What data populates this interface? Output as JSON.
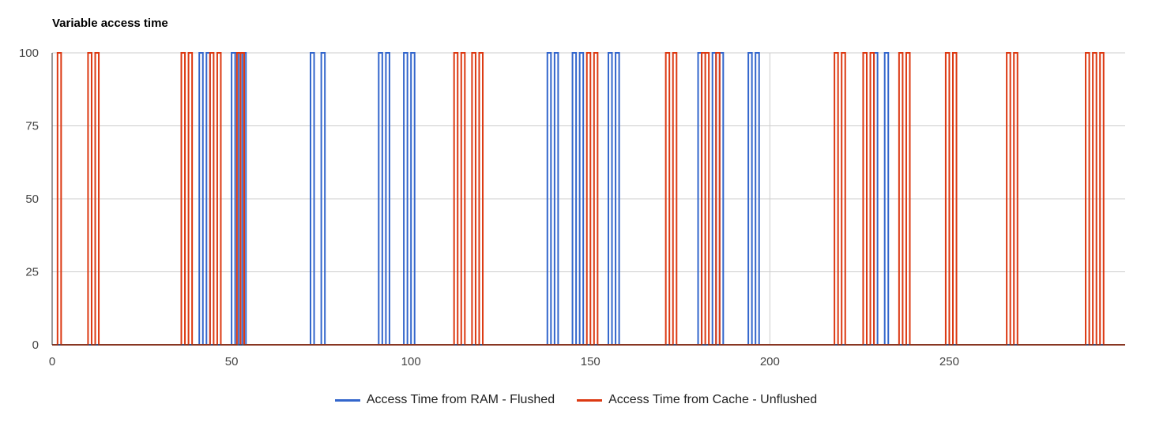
{
  "title": "Variable access time",
  "colors": {
    "ram": "#3366cc",
    "cache": "#dc3912"
  },
  "chart_data": {
    "type": "line",
    "title": "Variable access time",
    "xlabel": "",
    "ylabel": "",
    "xlim": [
      0,
      299
    ],
    "ylim": [
      0,
      100
    ],
    "x_ticks": [
      0,
      50,
      100,
      150,
      200,
      250
    ],
    "y_ticks": [
      0,
      25,
      50,
      75,
      100
    ],
    "grid": true,
    "legend_position": "bottom",
    "series": [
      {
        "name": "Access Time from RAM - Flushed",
        "color": "#3366cc",
        "spike_x": [
          41,
          43,
          50,
          51,
          53,
          72,
          75,
          91,
          93,
          98,
          100,
          138,
          140,
          145,
          147,
          155,
          157,
          180,
          184,
          186,
          194,
          196,
          229,
          232
        ],
        "spike_value": 100,
        "base_value": 0
      },
      {
        "name": "Access Time from Cache - Unflushed",
        "color": "#dc3912",
        "spike_x": [
          1.5,
          10,
          12,
          36,
          38,
          44,
          46,
          51.5,
          52.5,
          112,
          114,
          117,
          119,
          149,
          151,
          171,
          173,
          181,
          182,
          185,
          218,
          220,
          226,
          228,
          236,
          238,
          249,
          251,
          266,
          268,
          288,
          290,
          292
        ],
        "spike_value": 100,
        "base_value": 0
      }
    ]
  }
}
